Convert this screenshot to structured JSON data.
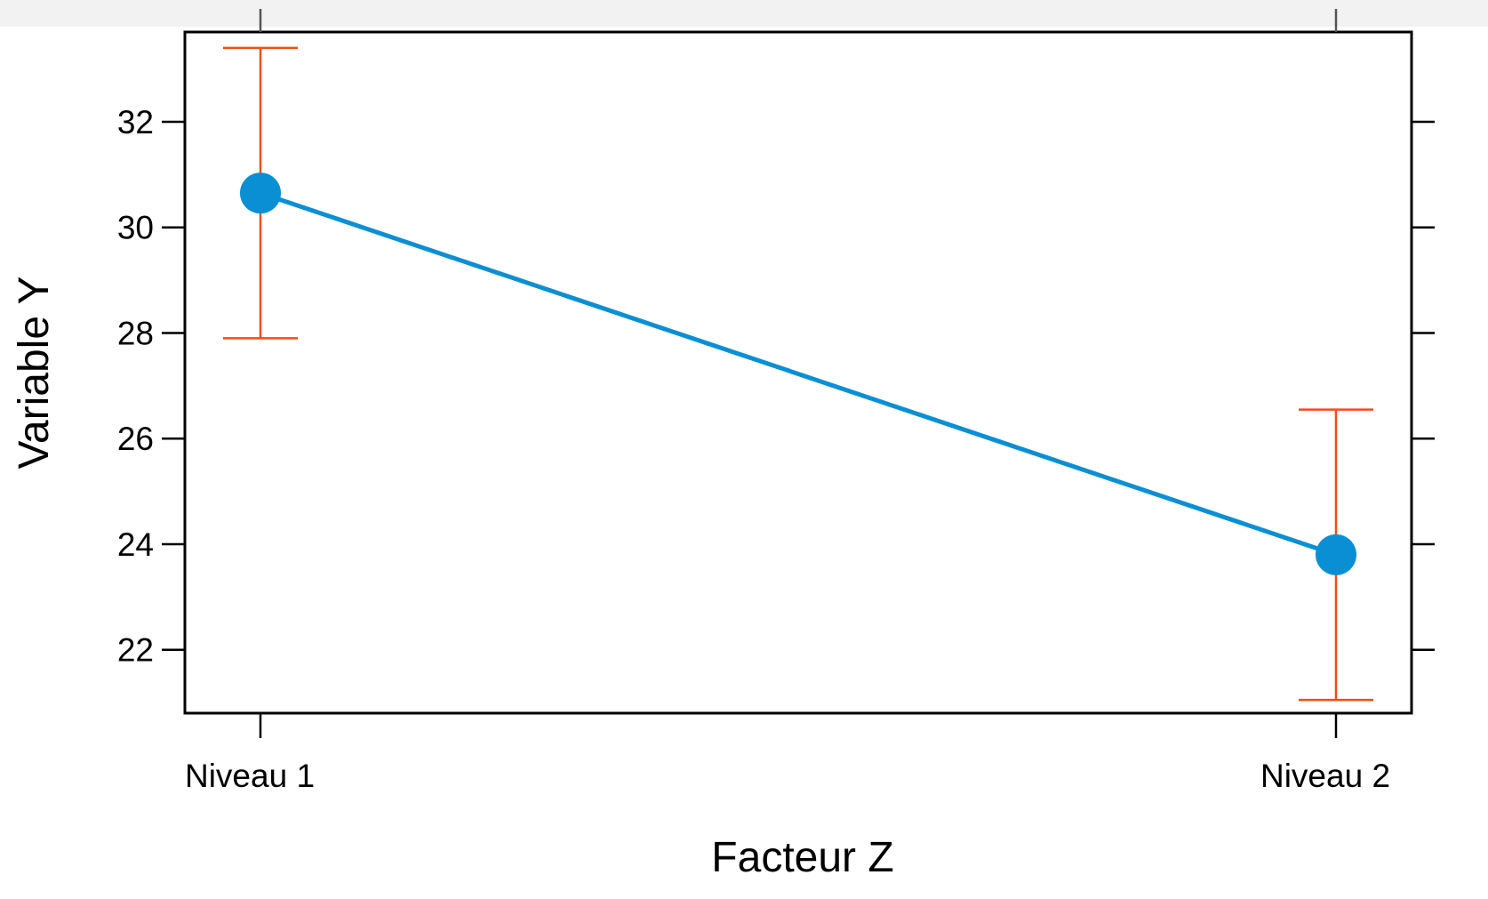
{
  "colors": {
    "series": "#0a8fd4",
    "error_bar": "#f04e18",
    "axis": "#000000",
    "top_strip": "#f2f2f2"
  },
  "chart_data": {
    "type": "line",
    "title": "",
    "xlabel": "Facteur Z",
    "ylabel": "Variable Y",
    "categories": [
      "Niveau 1",
      "Niveau 2"
    ],
    "ylim": [
      20.8,
      33.7
    ],
    "yticks": [
      22,
      24,
      26,
      28,
      30,
      32
    ],
    "ytick_labels": [
      "22",
      "24",
      "26",
      "28",
      "30",
      "32"
    ],
    "grid": false,
    "legend": "none",
    "series": [
      {
        "values": [
          30.65,
          23.8
        ],
        "error_lower": [
          27.9,
          21.05
        ],
        "error_upper": [
          33.4,
          26.55
        ],
        "marker": "circle"
      }
    ]
  }
}
